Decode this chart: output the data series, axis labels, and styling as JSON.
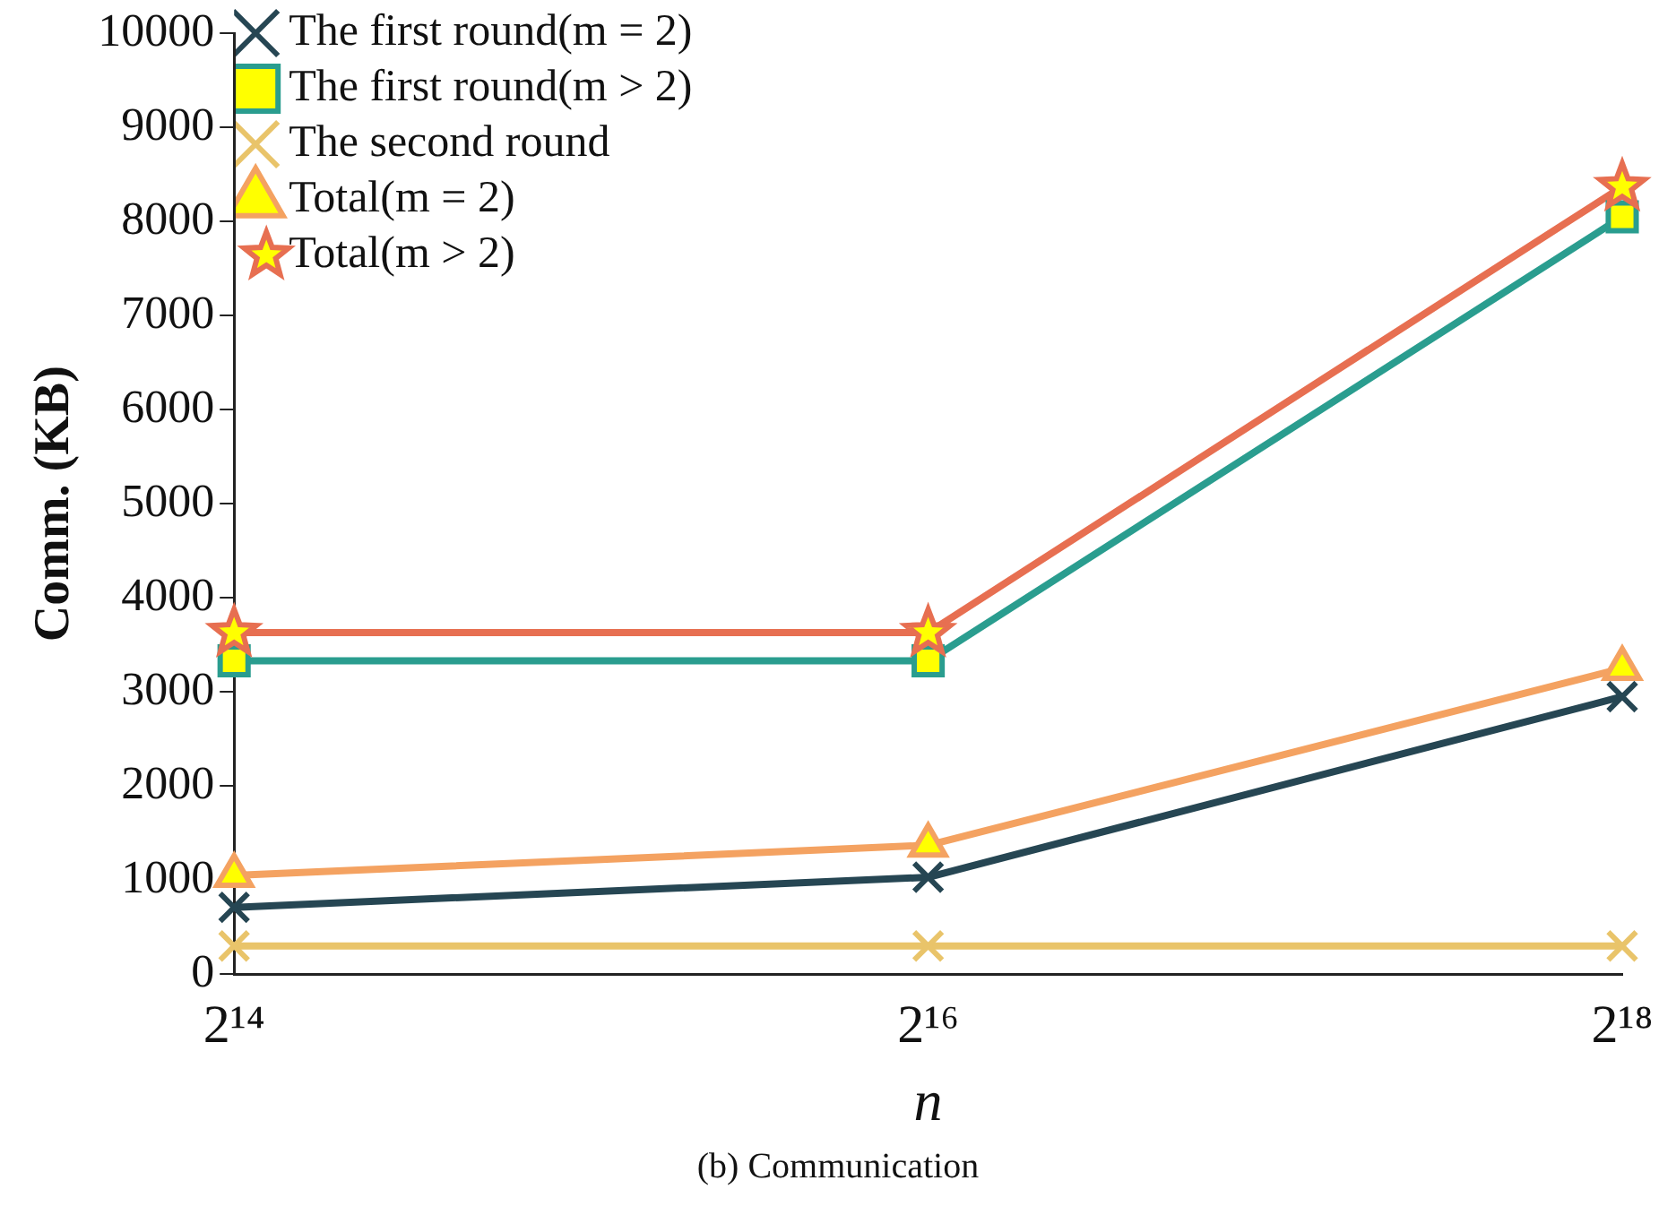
{
  "chart_data": {
    "type": "line",
    "categories": [
      "2¹⁴",
      "2¹⁶",
      "2¹⁸"
    ],
    "xlabel": "n",
    "ylabel": "Comm. (KB)",
    "ylim": [
      0,
      10000
    ],
    "yticks": [
      0,
      1000,
      2000,
      3000,
      4000,
      5000,
      6000,
      7000,
      8000,
      9000,
      10000
    ],
    "grid": false,
    "legend": "top left",
    "line_style": "solid",
    "annotations": [
      "(b) Communication"
    ],
    "series": [
      {
        "name": "The first round(m = 2)",
        "color": "#264653",
        "marker": "cross",
        "values": [
          710,
          1030,
          2950
        ]
      },
      {
        "name": "The first round(m > 2)",
        "color": "#2a9d8f",
        "marker": "square",
        "values": [
          3330,
          3330,
          8050
        ]
      },
      {
        "name": "The second round",
        "color": "#e9c46a",
        "marker": "cross",
        "values": [
          300,
          300,
          300
        ]
      },
      {
        "name": "Total(m = 2)",
        "color": "#f4a261",
        "marker": "triangle",
        "values": [
          1050,
          1370,
          3250
        ]
      },
      {
        "name": "Total(m > 2)",
        "color": "#e76f51",
        "marker": "star",
        "values": [
          3630,
          3630,
          8370
        ]
      }
    ]
  }
}
